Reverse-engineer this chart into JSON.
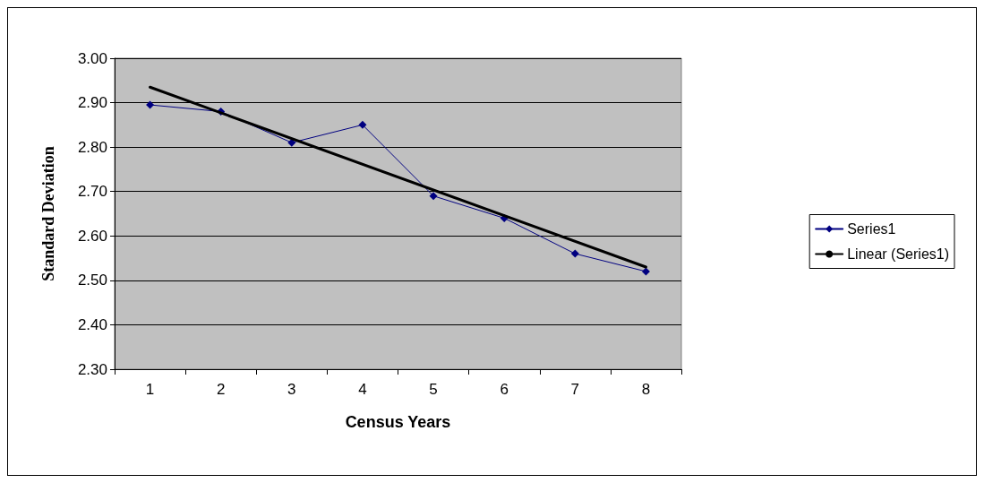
{
  "chart_data": {
    "type": "line",
    "xlabel": "Census Years",
    "ylabel": "Standard Deviation",
    "categories": [
      "1",
      "2",
      "3",
      "4",
      "5",
      "6",
      "7",
      "8"
    ],
    "series": [
      {
        "name": "Series1",
        "color": "#000080",
        "marker": "diamond",
        "values": [
          2.895,
          2.88,
          2.81,
          2.85,
          2.69,
          2.64,
          2.56,
          2.52
        ]
      },
      {
        "name": "Linear (Series1)",
        "color": "#000000",
        "marker": "none",
        "x": [
          "1",
          "8"
        ],
        "values": [
          2.935,
          2.53
        ]
      }
    ],
    "ylim": [
      2.3,
      3.0
    ],
    "yticks": [
      {
        "value": 2.3,
        "label": "2.30"
      },
      {
        "value": 2.4,
        "label": "2.40"
      },
      {
        "value": 2.5,
        "label": "2.50"
      },
      {
        "value": 2.6,
        "label": "2.60"
      },
      {
        "value": 2.7,
        "label": "2.70"
      },
      {
        "value": 2.8,
        "label": "2.80"
      },
      {
        "value": 2.9,
        "label": "2.90"
      },
      {
        "value": 3.0,
        "label": "3.00"
      }
    ],
    "grid": "y",
    "legend": "right"
  }
}
